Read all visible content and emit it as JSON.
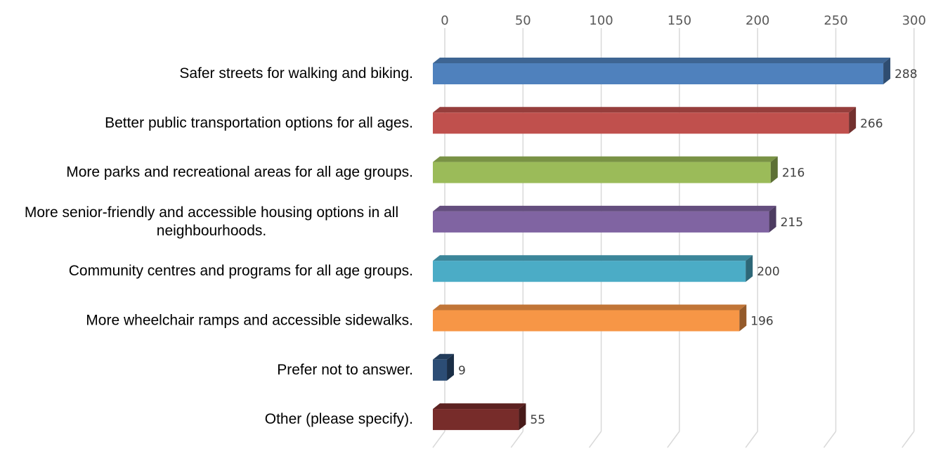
{
  "chart_data": {
    "type": "bar",
    "orientation": "horizontal",
    "style": "3d-clustered",
    "title": "",
    "xlabel": "",
    "ylabel": "",
    "xlim": [
      0,
      300
    ],
    "ticks": [
      "0",
      "50",
      "100",
      "150",
      "200",
      "250",
      "300"
    ],
    "tick_values": [
      0,
      50,
      100,
      150,
      200,
      250,
      300
    ],
    "axis_position": "top",
    "grid": true,
    "legend": "none",
    "categories": [
      [
        "Safer streets for walking and biking."
      ],
      [
        "Better public transportation options for all ages."
      ],
      [
        "More parks and recreational areas for all age groups."
      ],
      [
        "More senior-friendly and accessible housing options in all",
        "neighbourhoods."
      ],
      [
        "Community centres and programs for all age groups."
      ],
      [
        "More wheelchair ramps and accessible sidewalks."
      ],
      [
        "Prefer not to answer."
      ],
      [
        "Other (please specify)."
      ]
    ],
    "values": [
      288,
      266,
      216,
      215,
      200,
      196,
      9,
      55
    ],
    "value_labels": [
      "288",
      "266",
      "216",
      "215",
      "200",
      "196",
      "9",
      "55"
    ],
    "colors": [
      "#4f81bd",
      "#c0504d",
      "#9bbb59",
      "#8064a2",
      "#4bacc6",
      "#f79646",
      "#2c4d75",
      "#772c2a"
    ]
  }
}
